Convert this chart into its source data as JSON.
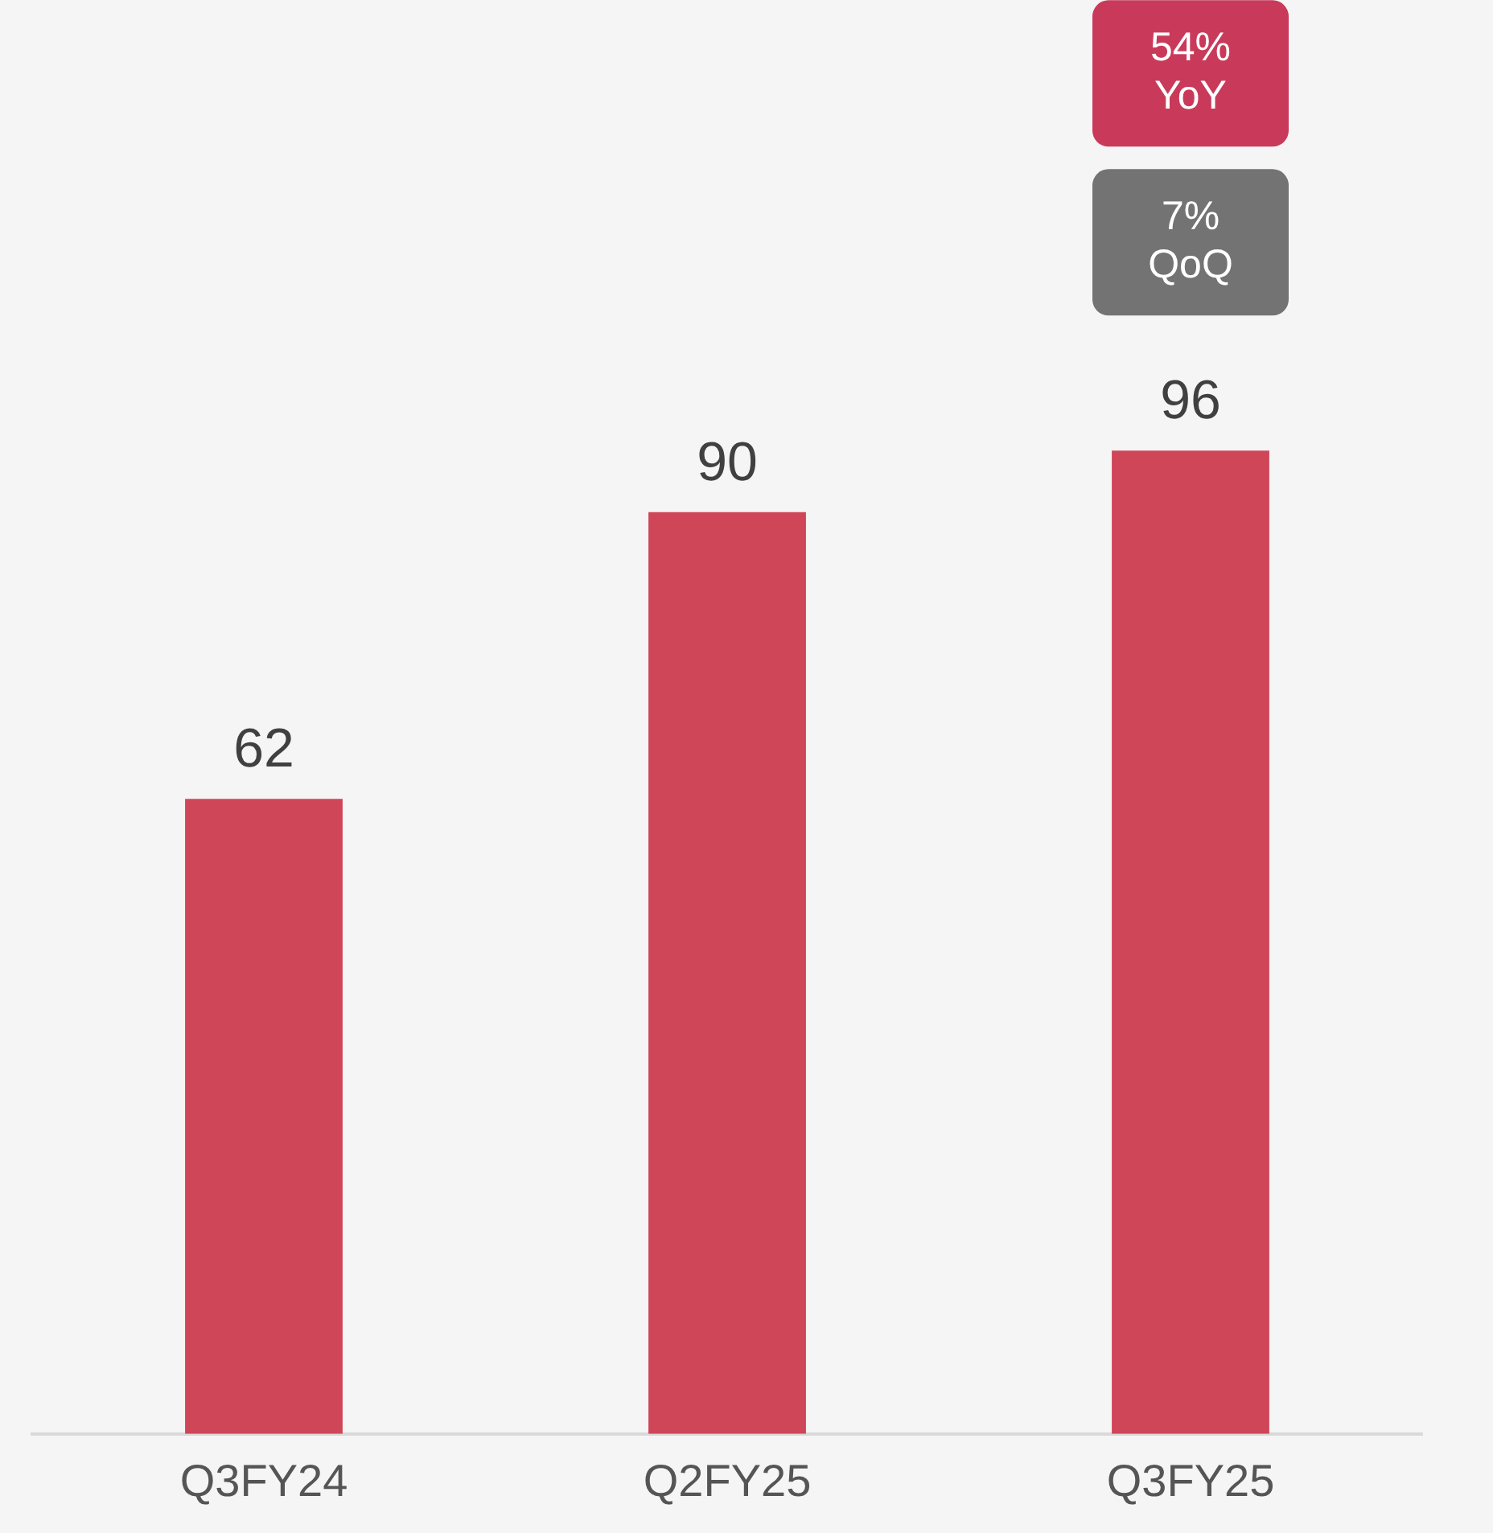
{
  "chart_data": {
    "type": "bar",
    "categories": [
      "Q3FY24",
      "Q2FY25",
      "Q3FY25"
    ],
    "values": [
      62,
      90,
      96
    ],
    "color": "#cf4658",
    "ylim": [
      0,
      140
    ],
    "data_labels": true,
    "grid": false,
    "legend": false,
    "annotations": [
      "54% YoY",
      "7% QoQ"
    ]
  }
}
